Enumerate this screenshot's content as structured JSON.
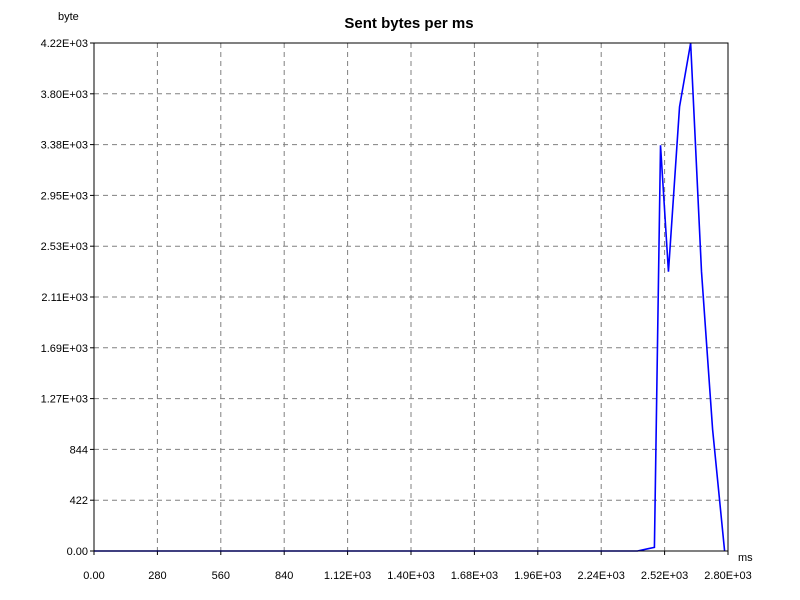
{
  "chart_data": {
    "type": "line",
    "title": "Sent bytes per ms",
    "xlabel": "ms",
    "ylabel": "byte",
    "xlim": [
      0,
      2800
    ],
    "ylim": [
      0,
      4220
    ],
    "x_ticks": [
      0,
      280,
      560,
      840,
      1120,
      1400,
      1680,
      1960,
      2240,
      2520,
      2800
    ],
    "x_tick_labels": [
      "0.00",
      "280",
      "560",
      "840",
      "1.12E+03",
      "1.40E+03",
      "1.68E+03",
      "1.96E+03",
      "2.24E+03",
      "2.52E+03",
      "2.80E+03"
    ],
    "y_ticks": [
      0,
      422,
      844,
      1266,
      1688,
      2110,
      2532,
      2954,
      3376,
      3798,
      4220
    ],
    "y_tick_labels": [
      "0.00",
      "422",
      "844",
      "1.27E+03",
      "1.69E+03",
      "2.11E+03",
      "2.53E+03",
      "2.95E+03",
      "3.38E+03",
      "3.80E+03",
      "4.22E+03"
    ],
    "grid": true,
    "series": [
      {
        "color": "#0000ff",
        "x": [
          0,
          2400,
          2450,
          2475,
          2502,
          2537,
          2586,
          2635,
          2683,
          2732,
          2785
        ],
        "y": [
          0,
          0,
          20,
          30,
          3370,
          2320,
          3690,
          4220,
          2320,
          1010,
          0
        ]
      }
    ]
  }
}
